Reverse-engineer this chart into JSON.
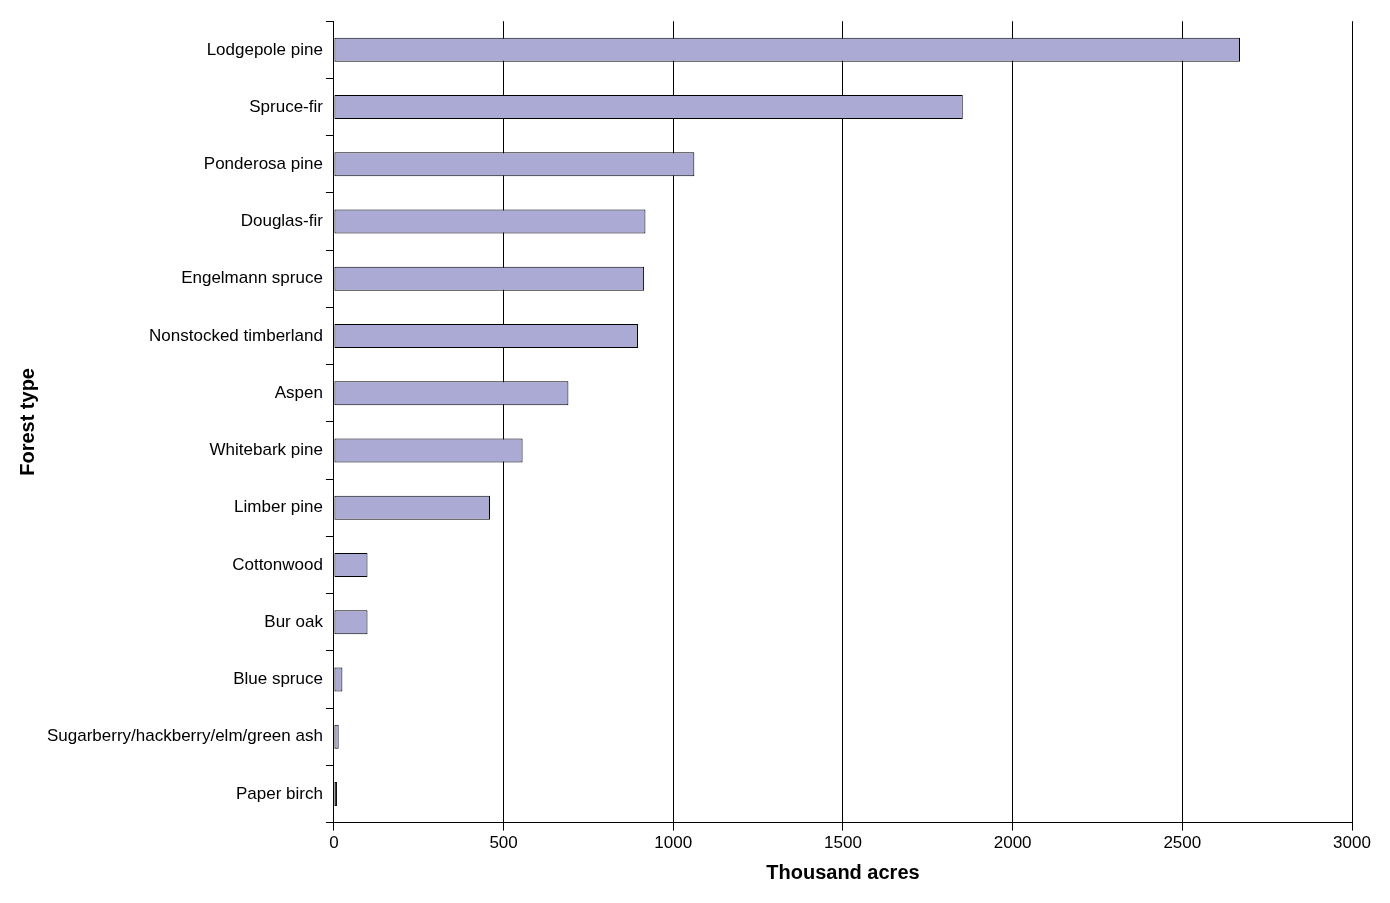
{
  "chart_data": {
    "type": "bar",
    "orientation": "horizontal",
    "categories": [
      "Lodgepole pine",
      "Spruce-fir",
      "Ponderosa pine",
      "Douglas-fir",
      "Engelmann spruce",
      "Nonstocked timberland",
      "Aspen",
      "Whitebark pine",
      "Limber pine",
      "Cottonwood",
      "Bur oak",
      "Blue spruce",
      "Sugarberry/hackberry/elm/green ash",
      "Paper birch"
    ],
    "values": [
      2670,
      1853,
      1062,
      918,
      914,
      896,
      691,
      556,
      460,
      99,
      99,
      25,
      14,
      9
    ],
    "colors": [
      "#aaaad5",
      "#aaaad5",
      "#aaaad5",
      "#aaaad5",
      "#aaaad5",
      "#aaaad5",
      "#aaaad5",
      "#aaaad5",
      "#aaaad5",
      "#aaaad5",
      "#aaaad5",
      "#aaaad5",
      "#aaaad5",
      "#000000"
    ],
    "xlim": [
      0,
      3000
    ],
    "xticks": [
      0,
      500,
      1000,
      1500,
      2000,
      2500,
      3000
    ],
    "xlabel": "Thousand acres",
    "ylabel": "Forest type",
    "grid": "x",
    "legend": false
  }
}
